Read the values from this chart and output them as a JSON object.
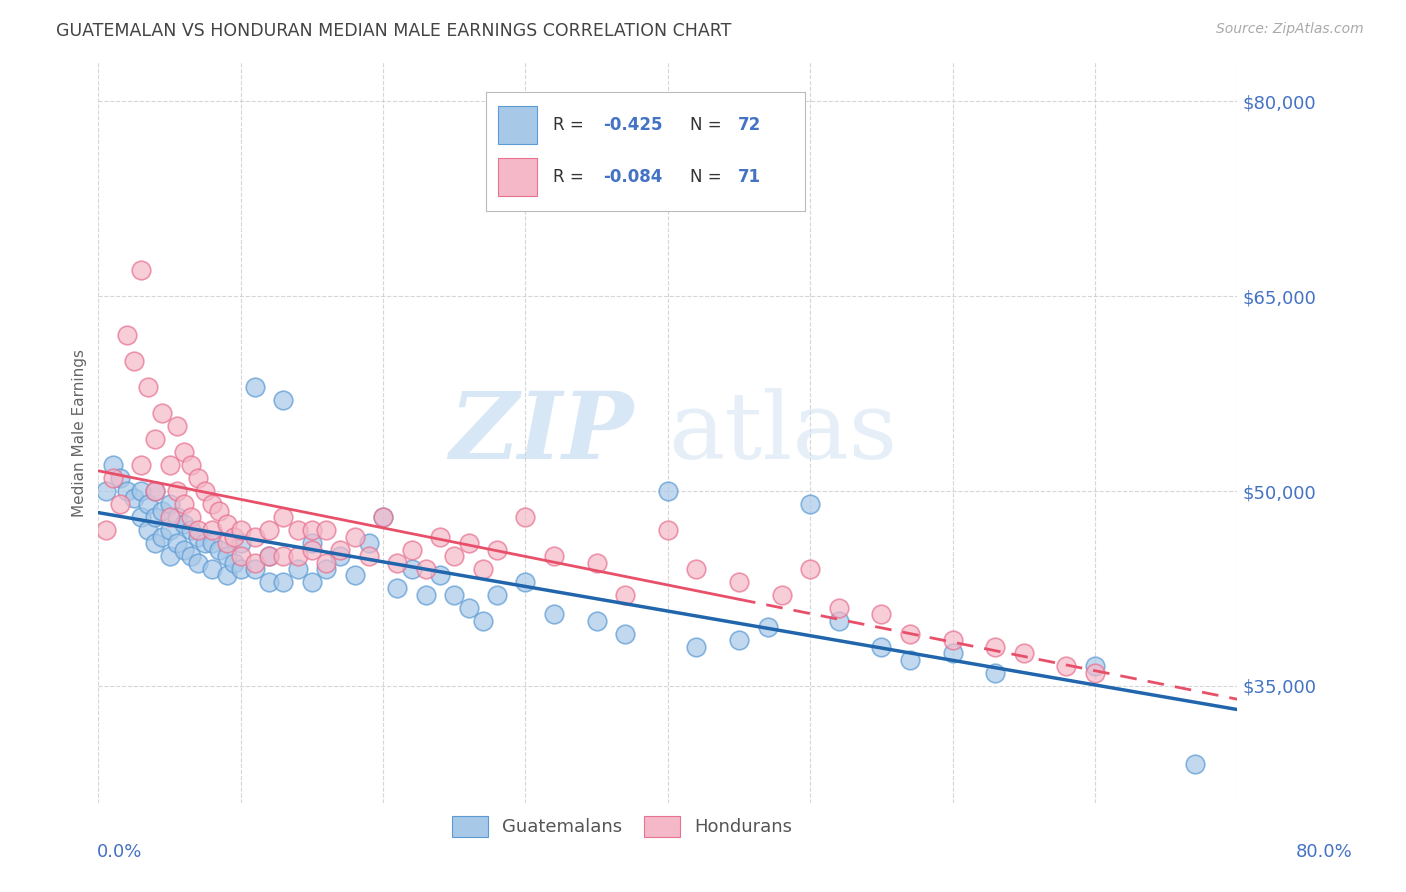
{
  "title": "GUATEMALAN VS HONDURAN MEDIAN MALE EARNINGS CORRELATION CHART",
  "source": "Source: ZipAtlas.com",
  "ylabel": "Median Male Earnings",
  "yticks": [
    35000,
    50000,
    65000,
    80000
  ],
  "ytick_labels": [
    "$35,000",
    "$50,000",
    "$65,000",
    "$80,000"
  ],
  "watermark_zip": "ZIP",
  "watermark_atlas": "atlas",
  "blue_color": "#a8c8e8",
  "blue_edge_color": "#5b9bd5",
  "pink_color": "#f4b8c8",
  "pink_edge_color": "#e87090",
  "blue_line_color": "#2166ac",
  "pink_line_color": "#e8506a",
  "title_color": "#555555",
  "axis_label_color": "#4472c4",
  "grid_color": "#cccccc",
  "background_color": "#ffffff",
  "guatemalans_label": "Guatemalans",
  "hondurans_label": "Hondurans",
  "xmin": 0.0,
  "xmax": 0.8,
  "ymin": 26000,
  "ymax": 83000,
  "legend_R1": "R = ",
  "legend_V1": "-0.425",
  "legend_N1": "N = ",
  "legend_NV1": "72",
  "legend_R2": "R = ",
  "legend_V2": "-0.084",
  "legend_N2": "N = ",
  "legend_NV2": "71",
  "guatemalan_x": [
    0.005,
    0.01,
    0.015,
    0.02,
    0.025,
    0.03,
    0.03,
    0.035,
    0.035,
    0.04,
    0.04,
    0.04,
    0.045,
    0.045,
    0.05,
    0.05,
    0.05,
    0.055,
    0.055,
    0.06,
    0.06,
    0.065,
    0.065,
    0.07,
    0.07,
    0.075,
    0.08,
    0.08,
    0.085,
    0.09,
    0.09,
    0.095,
    0.1,
    0.1,
    0.11,
    0.11,
    0.12,
    0.12,
    0.13,
    0.13,
    0.14,
    0.15,
    0.15,
    0.16,
    0.17,
    0.18,
    0.19,
    0.2,
    0.21,
    0.22,
    0.23,
    0.24,
    0.25,
    0.26,
    0.27,
    0.28,
    0.3,
    0.32,
    0.35,
    0.37,
    0.4,
    0.42,
    0.45,
    0.47,
    0.5,
    0.52,
    0.55,
    0.57,
    0.6,
    0.63,
    0.7,
    0.77
  ],
  "guatemalan_y": [
    50000,
    52000,
    51000,
    50000,
    49500,
    50000,
    48000,
    49000,
    47000,
    50000,
    48000,
    46000,
    48500,
    46500,
    49000,
    47000,
    45000,
    48000,
    46000,
    47500,
    45500,
    47000,
    45000,
    46500,
    44500,
    46000,
    46000,
    44000,
    45500,
    45000,
    43500,
    44500,
    46000,
    44000,
    58000,
    44000,
    45000,
    43000,
    57000,
    43000,
    44000,
    46000,
    43000,
    44000,
    45000,
    43500,
    46000,
    48000,
    42500,
    44000,
    42000,
    43500,
    42000,
    41000,
    40000,
    42000,
    43000,
    40500,
    40000,
    39000,
    50000,
    38000,
    38500,
    39500,
    49000,
    40000,
    38000,
    37000,
    37500,
    36000,
    36500,
    29000
  ],
  "honduran_x": [
    0.005,
    0.01,
    0.015,
    0.02,
    0.025,
    0.03,
    0.03,
    0.035,
    0.04,
    0.04,
    0.045,
    0.05,
    0.05,
    0.055,
    0.055,
    0.06,
    0.06,
    0.065,
    0.065,
    0.07,
    0.07,
    0.075,
    0.08,
    0.08,
    0.085,
    0.09,
    0.09,
    0.095,
    0.1,
    0.1,
    0.11,
    0.11,
    0.12,
    0.12,
    0.13,
    0.13,
    0.14,
    0.14,
    0.15,
    0.15,
    0.16,
    0.16,
    0.17,
    0.18,
    0.19,
    0.2,
    0.21,
    0.22,
    0.23,
    0.24,
    0.25,
    0.26,
    0.27,
    0.28,
    0.3,
    0.32,
    0.35,
    0.37,
    0.4,
    0.42,
    0.45,
    0.48,
    0.5,
    0.52,
    0.55,
    0.57,
    0.6,
    0.63,
    0.65,
    0.68,
    0.7
  ],
  "honduran_y": [
    47000,
    51000,
    49000,
    62000,
    60000,
    67000,
    52000,
    58000,
    54000,
    50000,
    56000,
    52000,
    48000,
    55000,
    50000,
    53000,
    49000,
    52000,
    48000,
    51000,
    47000,
    50000,
    49000,
    47000,
    48500,
    47500,
    46000,
    46500,
    47000,
    45000,
    46500,
    44500,
    47000,
    45000,
    48000,
    45000,
    47000,
    45000,
    47000,
    45500,
    47000,
    44500,
    45500,
    46500,
    45000,
    48000,
    44500,
    45500,
    44000,
    46500,
    45000,
    46000,
    44000,
    45500,
    48000,
    45000,
    44500,
    42000,
    47000,
    44000,
    43000,
    42000,
    44000,
    41000,
    40500,
    39000,
    38500,
    38000,
    37500,
    36500,
    36000
  ]
}
